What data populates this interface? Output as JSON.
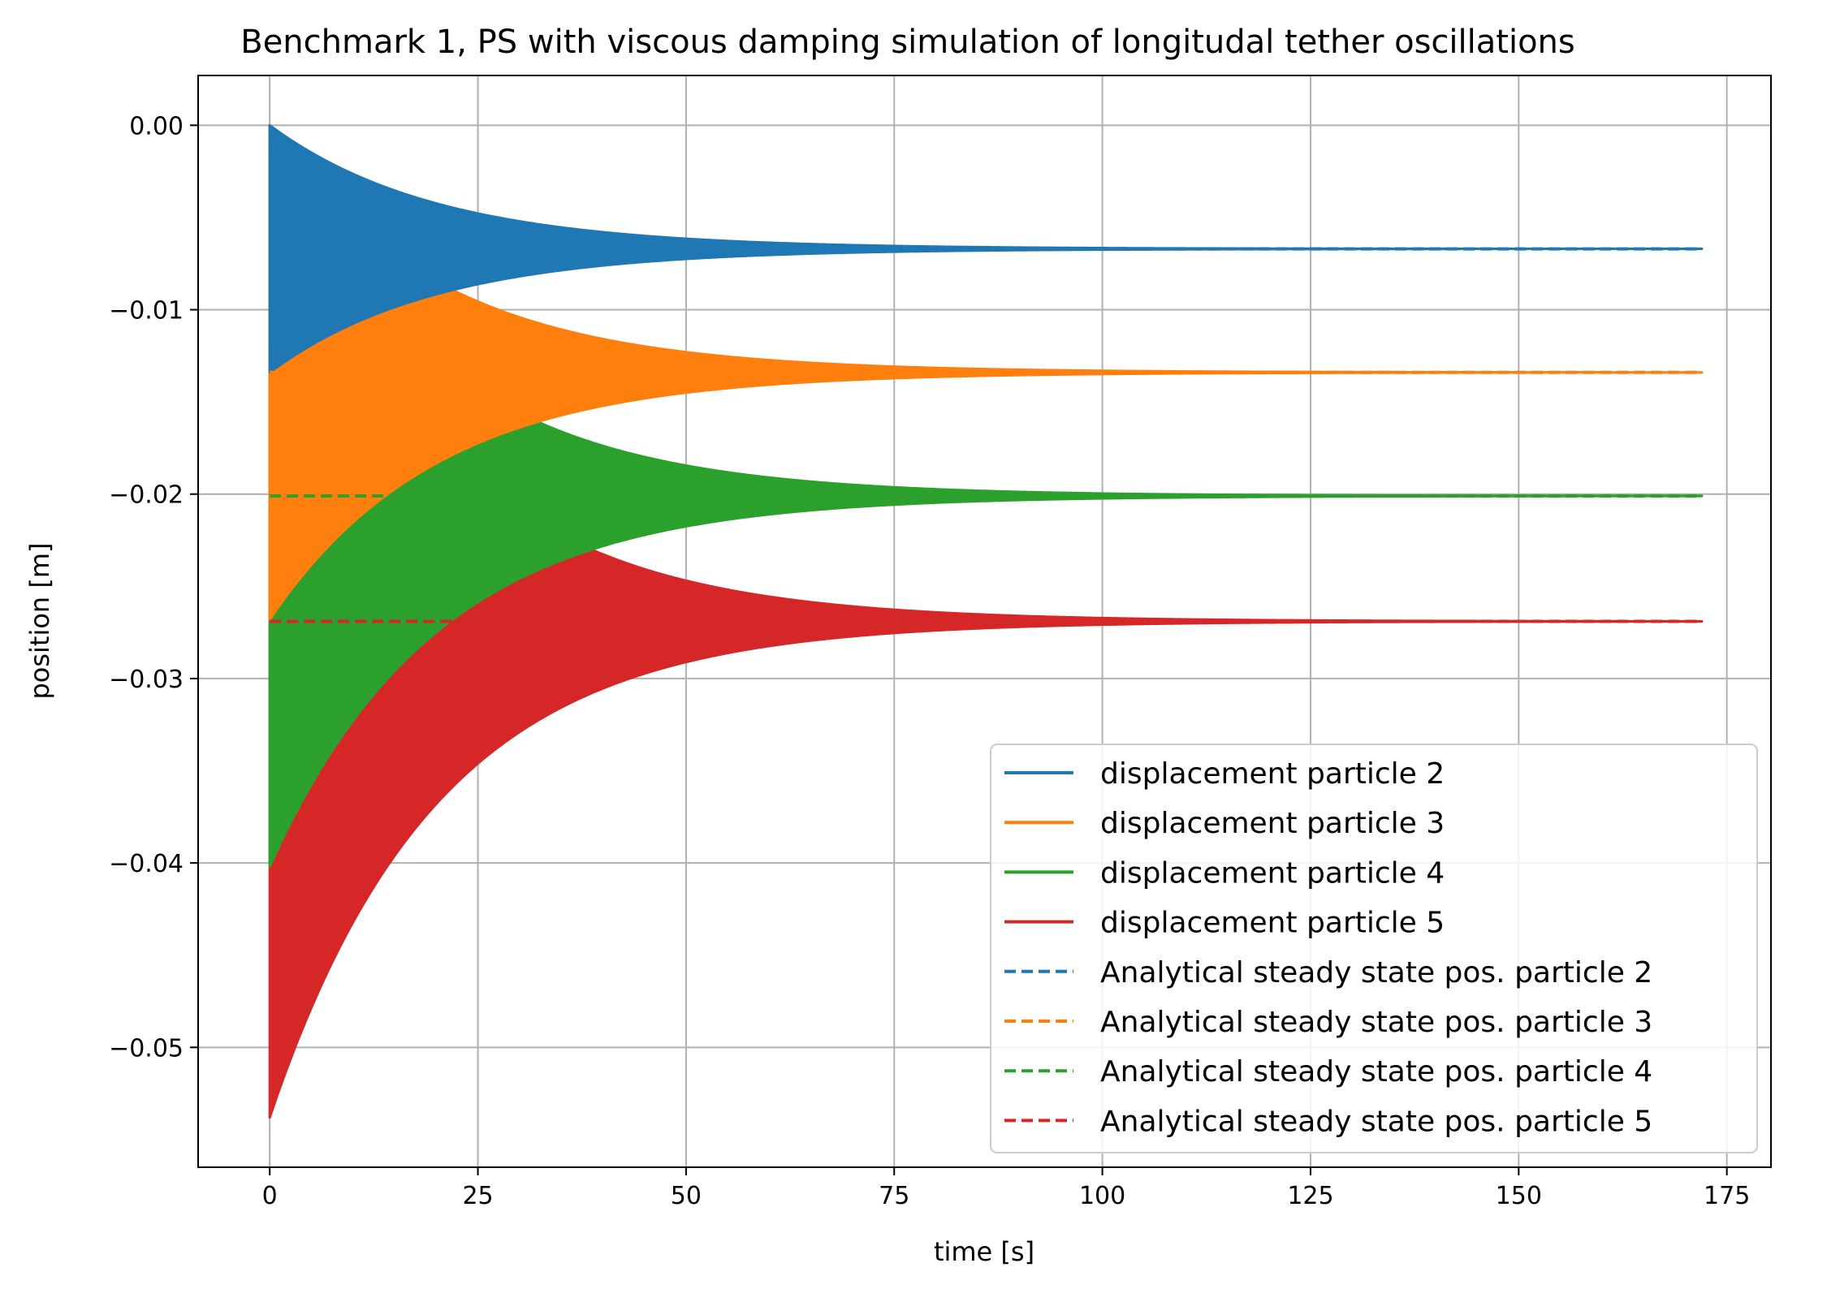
{
  "chart_data": {
    "type": "area",
    "title": "Benchmark 1, PS with viscous damping simulation of longitudal tether oscillations",
    "xlabel": "time [s]",
    "ylabel": "position [m]",
    "xlim": [
      -8.6,
      180.3
    ],
    "ylim": [
      -0.0565,
      0.0027
    ],
    "x_ticks": [
      0,
      25,
      50,
      75,
      100,
      125,
      150,
      175
    ],
    "x_tick_labels": [
      "0",
      "25",
      "50",
      "75",
      "100",
      "125",
      "150",
      "175"
    ],
    "y_ticks": [
      0.0,
      -0.01,
      -0.02,
      -0.03,
      -0.04,
      -0.05
    ],
    "y_tick_labels": [
      "0.00",
      "−0.01",
      "−0.02",
      "−0.03",
      "−0.04",
      "−0.05"
    ],
    "grid": true,
    "legend_position": "lower right",
    "x_end": 172,
    "damping_time_constant_s": 20,
    "series": [
      {
        "name": "displacement particle 2",
        "style": "oscillation",
        "color": "#1f77b4",
        "steady_state": -0.0067,
        "initial_min": -0.0134
      },
      {
        "name": "displacement particle 3",
        "style": "oscillation",
        "color": "#ff7f0e",
        "steady_state": -0.0134,
        "initial_min": -0.0268
      },
      {
        "name": "displacement particle 4",
        "style": "oscillation",
        "color": "#2ca02c",
        "steady_state": -0.0201,
        "initial_min": -0.0402
      },
      {
        "name": "displacement particle 5",
        "style": "oscillation",
        "color": "#d62728",
        "steady_state": -0.0269,
        "initial_min": -0.0538
      },
      {
        "name": "Analytical steady state pos. particle 2",
        "style": "dashed",
        "color": "#1f77b4",
        "y": -0.0067
      },
      {
        "name": "Analytical steady state pos. particle 3",
        "style": "dashed",
        "color": "#ff7f0e",
        "y": -0.0134
      },
      {
        "name": "Analytical steady state pos. particle 4",
        "style": "dashed",
        "color": "#2ca02c",
        "y": -0.0201
      },
      {
        "name": "Analytical steady state pos. particle 5",
        "style": "dashed",
        "color": "#d62728",
        "y": -0.0269
      }
    ]
  }
}
